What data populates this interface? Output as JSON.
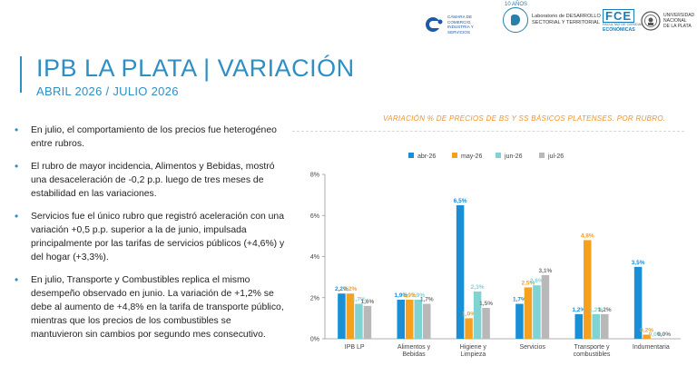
{
  "header": {
    "title": "IPB LA PLATA | VARIACIÓN",
    "subtitle": "ABRIL 2026 / JULIO 2026"
  },
  "logos": {
    "camara": "CÁMARA DE COMERCIO, INDUSTRIA Y SERVICIOS",
    "lab_years": "10 AÑOS",
    "lab_line1": "Laboratorio de DESARROLLO",
    "lab_line2": "SECTORIAL Y TERRITORIAL",
    "fce_mark": "FCE",
    "fce_small": "FACULTAD DE CIENCIAS",
    "fce_big": "ECONÓMICAS",
    "unlp_line1": "UNIVERSIDAD",
    "unlp_line2": "NACIONAL",
    "unlp_line3": "DE LA PLATA"
  },
  "bullets": [
    "En julio, el comportamiento de los precios fue heterogéneo entre rubros.",
    "El rubro de mayor incidencia, Alimentos y Bebidas, mostró una desaceleración de -0,2 p.p. luego de tres meses de estabilidad en las variaciones.",
    "Servicios fue el único rubro que registró aceleración con una variación +0,5 p.p. superior a la de junio, impulsada principalmente por las tarifas de servicios públicos (+4,6%) y del hogar (+3,3%).",
    "En julio, Transporte y Combustibles replica el mismo desempeño observado en junio. La variación de +1,2% se debe al aumento de +4,8% en la tarifa de transporte público, mientras que los precios de los combustibles se mantuvieron sin cambios por segundo mes consecutivo."
  ],
  "chart_data": {
    "type": "bar",
    "title": "VARIACIÓN % DE PRECIOS DE BS Y SS BÁSICOS PLATENSES. POR RUBRO.",
    "categories": [
      "IPB LP",
      "Alimentos y Bebidas",
      "Higiene y Limpieza",
      "Servicios",
      "Transporte y combustibles",
      "Indumentaria"
    ],
    "category_lines": [
      [
        "IPB LP"
      ],
      [
        "Alimentos y",
        "Bebidas"
      ],
      [
        "Higiene y",
        "Limpieza"
      ],
      [
        "Servicios"
      ],
      [
        "Transporte y",
        "combustibles"
      ],
      [
        "Indumentaria"
      ]
    ],
    "series": [
      {
        "name": "abr-26",
        "color": "#1a8fd6",
        "values": [
          2.2,
          1.9,
          6.5,
          1.7,
          1.2,
          3.5
        ],
        "labels": [
          "2,2%",
          "1,9%",
          "6,5%",
          "1,7%",
          "1,2%",
          "3,5%"
        ]
      },
      {
        "name": "may-26",
        "color": "#f5a01f",
        "values": [
          2.2,
          1.9,
          1.0,
          2.5,
          4.8,
          0.2
        ],
        "labels": [
          "2,2%",
          "1,9%",
          "1,0%",
          "2,5%",
          "4,8%",
          "0,2%"
        ]
      },
      {
        "name": "jun-26",
        "color": "#7fd3d3",
        "values": [
          1.7,
          1.9,
          2.3,
          2.6,
          1.2,
          0.0
        ],
        "labels": [
          "1,7%",
          "1,9%",
          "2,3%",
          "2,6%",
          "1,2%",
          "0,0%"
        ]
      },
      {
        "name": "jul-26",
        "color": "#b8b8b8",
        "values": [
          1.6,
          1.7,
          1.5,
          3.1,
          1.2,
          0.0
        ],
        "labels": [
          "1,6%",
          "1,7%",
          "1,5%",
          "3,1%",
          "1,2%",
          "0,0%"
        ]
      }
    ],
    "yticks": [
      "0%",
      "2%",
      "4%",
      "6%",
      "8%"
    ],
    "ylim": [
      0,
      8
    ],
    "legend_position": "top",
    "grid": false
  }
}
